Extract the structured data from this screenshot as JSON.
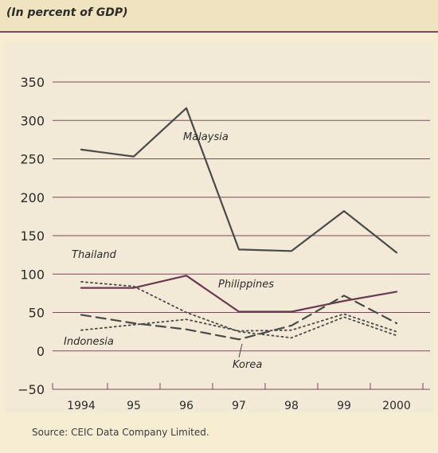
{
  "header": {
    "subtitle": "(In percent of GDP)"
  },
  "footer": {
    "source": "Source: CEIC Data Company Limited."
  },
  "colors": {
    "background": "#f6edd3",
    "band": "#f0e3bf",
    "rule": "#7a4a60",
    "grid": "#7a4a60",
    "line": "#4a4a4a",
    "philippines": "#6a3a52"
  },
  "chart_data": {
    "type": "line",
    "x": [
      "1994",
      "95",
      "96",
      "97",
      "98",
      "99",
      "2000"
    ],
    "ylim": [
      -50,
      350
    ],
    "yticks": [
      -50,
      0,
      50,
      100,
      150,
      200,
      250,
      300,
      350
    ],
    "grid": true,
    "series": [
      {
        "name": "Malaysia",
        "style": "solid",
        "values": [
          262,
          253,
          316,
          132,
          130,
          182,
          128
        ]
      },
      {
        "name": "Philippines",
        "style": "solid",
        "values": [
          82,
          82,
          98,
          51,
          51,
          65,
          77
        ]
      },
      {
        "name": "Thailand",
        "style": "dotted",
        "values": [
          90,
          84,
          50,
          25,
          17,
          44,
          20
        ]
      },
      {
        "name": "Korea",
        "style": "dashed",
        "values": [
          47,
          36,
          28,
          15,
          33,
          72,
          36
        ]
      },
      {
        "name": "Indonesia",
        "style": "dotted",
        "values": [
          27,
          34,
          41,
          26,
          27,
          48,
          25
        ]
      }
    ]
  }
}
